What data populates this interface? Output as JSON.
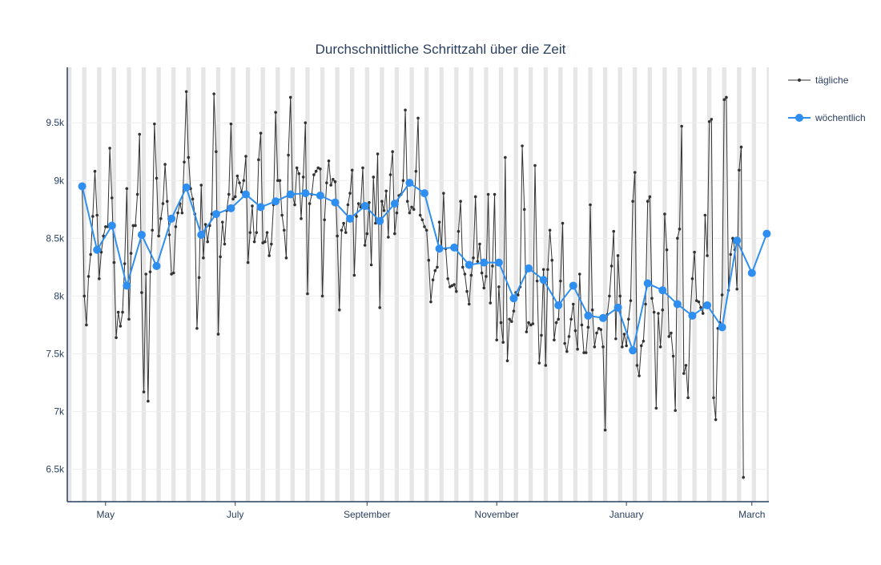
{
  "chart_data": {
    "type": "line",
    "title": "Durchschnittliche Schrittzahl über die Zeit",
    "xlabel": "",
    "ylabel": "",
    "x_axis": {
      "type": "date",
      "range": [
        "2024-04-13",
        "2025-03-09"
      ],
      "tick_labels": [
        {
          "date": "2024-05-01",
          "label": "May"
        },
        {
          "date": "2024-07-01",
          "label": "July"
        },
        {
          "date": "2024-09-01",
          "label": "September"
        },
        {
          "date": "2024-11-01",
          "label": "November"
        },
        {
          "date": "2025-01-01",
          "label": "January"
        },
        {
          "date": "2025-03-01",
          "label": "March"
        }
      ]
    },
    "y_axis": {
      "range": [
        6220,
        9980
      ],
      "ticks": [
        {
          "value": 6500,
          "label": "6.5k"
        },
        {
          "value": 7000,
          "label": "7k"
        },
        {
          "value": 7500,
          "label": "7.5k"
        },
        {
          "value": 8000,
          "label": "8k"
        },
        {
          "value": 8500,
          "label": "8.5k"
        },
        {
          "value": 9000,
          "label": "9k"
        },
        {
          "value": 9500,
          "label": "9.5k"
        }
      ]
    },
    "grid": true,
    "weekend_shading": true,
    "legend_position": "top-right",
    "series": [
      {
        "name": "tägliche",
        "color": "#333333",
        "mode": "lines+markers",
        "start_date": "2024-04-20",
        "interval": "1 day",
        "values": [
          8950,
          8000,
          7750,
          8170,
          8360,
          8690,
          9080,
          8700,
          8150,
          8380,
          8520,
          8600,
          8600,
          9280,
          8850,
          8290,
          7640,
          7860,
          7740,
          7860,
          8280,
          8930,
          7800,
          8370,
          8610,
          8610,
          8880,
          9400,
          8030,
          7170,
          8190,
          7090,
          8210,
          8570,
          9490,
          9020,
          8520,
          8670,
          8800,
          9140,
          8820,
          8530,
          8190,
          8200,
          8600,
          8720,
          8800,
          8720,
          9160,
          9770,
          9200,
          8930,
          8840,
          8710,
          7720,
          8160,
          8960,
          8330,
          8620,
          8470,
          8610,
          8710,
          9750,
          9250,
          7670,
          8340,
          8640,
          8450,
          8740,
          8880,
          9490,
          8840,
          8860,
          9040,
          8980,
          8900,
          9000,
          9210,
          8290,
          8550,
          8780,
          8470,
          8550,
          9180,
          9410,
          8460,
          8470,
          8550,
          8350,
          8450,
          8790,
          9590,
          9000,
          9000,
          8700,
          8570,
          8330,
          9220,
          9720,
          8870,
          8790,
          9110,
          9060,
          8670,
          9030,
          9500,
          8020,
          8800,
          8880,
          9050,
          9080,
          9110,
          9100,
          8000,
          8660,
          8980,
          9170,
          8960,
          9010,
          8990,
          8520,
          7880,
          8570,
          8630,
          8550,
          8790,
          8890,
          9090,
          8180,
          8690,
          8800,
          8770,
          9110,
          8440,
          8540,
          8810,
          8270,
          9030,
          8630,
          9230,
          7900,
          8820,
          8740,
          8910,
          8510,
          9050,
          9250,
          8540,
          8720,
          8870,
          8880,
          9000,
          9610,
          8820,
          8720,
          8770,
          8750,
          9080,
          9540,
          8700,
          8660,
          8600,
          8570,
          8310,
          7950,
          8140,
          8220,
          8250,
          8640,
          8410,
          8890,
          8410,
          8150,
          8080,
          8090,
          8100,
          8040,
          8560,
          8820,
          8250,
          8190,
          8040,
          7930,
          8180,
          8330,
          8860,
          8300,
          8450,
          8200,
          8070,
          8170,
          8880,
          7940,
          8260,
          8880,
          7620,
          8080,
          7770,
          7600,
          9200,
          7440,
          7800,
          7780,
          7870,
          8030,
          8010,
          8080,
          9300,
          8750,
          7690,
          7770,
          7750,
          7760,
          9130,
          8130,
          7420,
          7660,
          8230,
          7400,
          8230,
          8570,
          8310,
          7620,
          7770,
          7800,
          8130,
          8630,
          7590,
          7520,
          7650,
          7800,
          7930,
          7700,
          7540,
          8190,
          7750,
          7510,
          7510,
          7730,
          8790,
          7880,
          7560,
          7680,
          7720,
          7710,
          7560,
          6840,
          7840,
          8000,
          8260,
          8560,
          7630,
          8350,
          8000,
          7560,
          7670,
          7570,
          7800,
          7960,
          8820,
          9070,
          7400,
          7310,
          7570,
          7610,
          7930,
          8820,
          8860,
          7980,
          7860,
          7030,
          7850,
          7560,
          7880,
          8710,
          8400,
          7650,
          7680,
          7480,
          7010,
          8500,
          8580,
          9470,
          7330,
          7400,
          7120,
          7820,
          8150,
          8380,
          7960,
          7950,
          7900,
          7850,
          8700,
          8350,
          9510,
          9530,
          7120,
          6930,
          7720,
          7770,
          8010,
          9700,
          9720,
          8050,
          8360,
          8500,
          8400,
          8060,
          9090,
          9290,
          6430
        ]
      },
      {
        "name": "wöchentlich",
        "color": "#2e8ff0",
        "mode": "lines+markers",
        "start_date": "2024-04-20",
        "interval": "7 days",
        "values": [
          8950,
          8400,
          8610,
          8090,
          8530,
          8260,
          8670,
          8940,
          8530,
          8710,
          8760,
          8880,
          8770,
          8820,
          8880,
          8890,
          8870,
          8810,
          8670,
          8780,
          8650,
          8800,
          8980,
          8890,
          8410,
          8420,
          8270,
          8290,
          8290,
          7980,
          8240,
          8140,
          7920,
          8090,
          7830,
          7810,
          7900,
          7530,
          8110,
          8050,
          7930,
          7830,
          7920,
          7730,
          8480,
          8200,
          8540
        ]
      }
    ]
  }
}
